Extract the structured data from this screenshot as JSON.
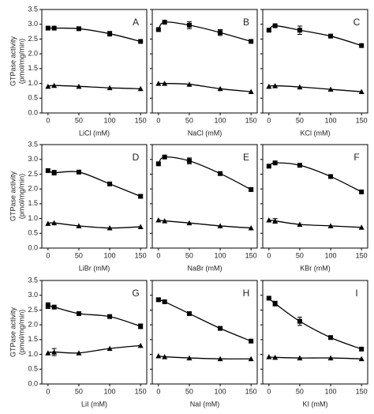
{
  "chart_data": [
    {
      "type": "scatter",
      "label": "A",
      "xlabel": "LiCl (mM)",
      "ylabel": [
        "GTPase activity",
        "(pmol/mg/min)"
      ],
      "x": [
        0,
        10,
        50,
        100,
        150
      ],
      "series": [
        {
          "marker": "square",
          "color": "#000000",
          "values": [
            2.87,
            2.87,
            2.85,
            2.68,
            2.42
          ],
          "errors": [
            null,
            null,
            null,
            0.08,
            null
          ]
        },
        {
          "marker": "triangle",
          "color": "#000000",
          "values": [
            0.9,
            0.93,
            0.9,
            0.85,
            0.82
          ],
          "errors": [
            null,
            null,
            null,
            null,
            null
          ]
        }
      ],
      "xlim": [
        -10,
        160
      ],
      "ylim": [
        0,
        3.5
      ],
      "xticks": [
        0,
        50,
        100,
        150
      ],
      "yticks": [
        {
          "value": 0,
          "label": "0.0"
        },
        {
          "value": 0.5,
          "label": "0.5"
        },
        {
          "value": 1,
          "label": "1.0"
        },
        {
          "value": 1.5,
          "label": "1.5"
        },
        {
          "value": 2,
          "label": "2.0"
        },
        {
          "value": 2.5,
          "label": "2.5"
        },
        {
          "value": 3,
          "label": "3.0"
        },
        {
          "value": 3.5,
          "label": "3.5"
        }
      ]
    },
    {
      "type": "scatter",
      "label": "B",
      "xlabel": "NaCl (mM)",
      "x": [
        0,
        10,
        50,
        100,
        150
      ],
      "series": [
        {
          "marker": "square",
          "color": "#000000",
          "values": [
            2.82,
            3.07,
            2.97,
            2.72,
            2.42
          ],
          "errors": [
            null,
            null,
            0.12,
            0.1,
            null
          ]
        },
        {
          "marker": "triangle",
          "color": "#000000",
          "values": [
            1.0,
            1.0,
            0.97,
            0.82,
            0.72
          ],
          "errors": [
            null,
            null,
            null,
            null,
            null
          ]
        }
      ],
      "xlim": [
        -10,
        160
      ],
      "ylim": [
        0,
        3.5
      ],
      "xticks": [
        0,
        50,
        100,
        150
      ],
      "yticks": [
        0,
        0.5,
        1,
        1.5,
        2,
        2.5,
        3,
        3.5
      ]
    },
    {
      "type": "scatter",
      "label": "C",
      "xlabel": "KCl (mM)",
      "x": [
        0,
        10,
        50,
        100,
        150
      ],
      "series": [
        {
          "marker": "square",
          "color": "#000000",
          "values": [
            2.8,
            2.95,
            2.8,
            2.6,
            2.28
          ],
          "errors": [
            null,
            null,
            0.14,
            null,
            null
          ]
        },
        {
          "marker": "triangle",
          "color": "#000000",
          "values": [
            0.9,
            0.92,
            0.88,
            0.8,
            0.72
          ],
          "errors": [
            null,
            null,
            null,
            null,
            null
          ]
        }
      ],
      "xlim": [
        -10,
        160
      ],
      "ylim": [
        0,
        3.5
      ],
      "xticks": [
        0,
        50,
        100,
        150
      ],
      "yticks": [
        0,
        0.5,
        1,
        1.5,
        2,
        2.5,
        3,
        3.5
      ]
    },
    {
      "type": "scatter",
      "label": "D",
      "xlabel": "LiBr (mM)",
      "ylabel": [
        "GTPase activity",
        "(pmol/mg/min)"
      ],
      "x": [
        0,
        10,
        50,
        100,
        150
      ],
      "series": [
        {
          "marker": "square",
          "color": "#000000",
          "values": [
            2.62,
            2.55,
            2.57,
            2.17,
            1.75
          ],
          "errors": [
            null,
            0.08,
            null,
            null,
            0.06
          ]
        },
        {
          "marker": "triangle",
          "color": "#000000",
          "values": [
            0.83,
            0.85,
            0.75,
            0.68,
            0.72
          ],
          "errors": [
            null,
            null,
            null,
            null,
            null
          ]
        }
      ],
      "xlim": [
        -10,
        160
      ],
      "ylim": [
        0,
        3.5
      ],
      "xticks": [
        0,
        50,
        100,
        150
      ],
      "yticks": [
        {
          "value": 0,
          "label": "0.0"
        },
        {
          "value": 0.5,
          "label": "0.5"
        },
        {
          "value": 1,
          "label": "1.0"
        },
        {
          "value": 1.5,
          "label": "1.5"
        },
        {
          "value": 2,
          "label": "2.0"
        },
        {
          "value": 2.5,
          "label": "2.5"
        },
        {
          "value": 3,
          "label": "3.0"
        },
        {
          "value": 3.5,
          "label": "3.5"
        }
      ]
    },
    {
      "type": "scatter",
      "label": "E",
      "xlabel": "NaBr (mM)",
      "x": [
        0,
        10,
        50,
        100,
        150
      ],
      "series": [
        {
          "marker": "square",
          "color": "#000000",
          "values": [
            2.85,
            3.08,
            2.95,
            2.52,
            1.98
          ],
          "errors": [
            null,
            null,
            0.1,
            null,
            0.06
          ]
        },
        {
          "marker": "triangle",
          "color": "#000000",
          "values": [
            0.95,
            0.92,
            0.85,
            0.75,
            0.68
          ],
          "errors": [
            null,
            null,
            null,
            null,
            null
          ]
        }
      ],
      "xlim": [
        -10,
        160
      ],
      "ylim": [
        0,
        3.5
      ],
      "xticks": [
        0,
        50,
        100,
        150
      ],
      "yticks": [
        0,
        0.5,
        1,
        1.5,
        2,
        2.5,
        3,
        3.5
      ]
    },
    {
      "type": "scatter",
      "label": "F",
      "xlabel": "KBr (mM)",
      "x": [
        0,
        10,
        50,
        100,
        150
      ],
      "series": [
        {
          "marker": "square",
          "color": "#000000",
          "values": [
            2.77,
            2.88,
            2.8,
            2.42,
            1.9
          ],
          "errors": [
            null,
            null,
            null,
            null,
            null
          ]
        },
        {
          "marker": "triangle",
          "color": "#000000",
          "values": [
            0.95,
            0.92,
            0.8,
            0.75,
            0.7
          ],
          "errors": [
            null,
            0.08,
            null,
            null,
            null
          ]
        }
      ],
      "xlim": [
        -10,
        160
      ],
      "ylim": [
        0,
        3.5
      ],
      "xticks": [
        0,
        50,
        100,
        150
      ],
      "yticks": [
        0,
        0.5,
        1,
        1.5,
        2,
        2.5,
        3,
        3.5
      ]
    },
    {
      "type": "scatter",
      "label": "G",
      "xlabel": "LiI (mM)",
      "ylabel": [
        "GTPase activity",
        "(pmol/mg/min)"
      ],
      "x": [
        0,
        10,
        50,
        100,
        150
      ],
      "series": [
        {
          "marker": "square",
          "color": "#000000",
          "values": [
            2.65,
            2.6,
            2.38,
            2.28,
            1.95
          ],
          "errors": [
            0.1,
            null,
            null,
            null,
            0.08
          ]
        },
        {
          "marker": "triangle",
          "color": "#000000",
          "values": [
            1.05,
            1.08,
            1.05,
            1.2,
            1.3
          ],
          "errors": [
            null,
            0.12,
            null,
            null,
            null
          ]
        }
      ],
      "xlim": [
        -10,
        160
      ],
      "ylim": [
        0,
        3.5
      ],
      "xticks": [
        0,
        50,
        100,
        150
      ],
      "yticks": [
        {
          "value": 0,
          "label": "0.0"
        },
        {
          "value": 0.5,
          "label": "0.5"
        },
        {
          "value": 1,
          "label": "1.0"
        },
        {
          "value": 1.5,
          "label": "1.5"
        },
        {
          "value": 2,
          "label": "2.0"
        },
        {
          "value": 2.5,
          "label": "2.5"
        },
        {
          "value": 3,
          "label": "3.0"
        },
        {
          "value": 3.5,
          "label": "3.5"
        }
      ]
    },
    {
      "type": "scatter",
      "label": "H",
      "xlabel": "NaI (mM)",
      "x": [
        0,
        10,
        50,
        100,
        150
      ],
      "series": [
        {
          "marker": "square",
          "color": "#000000",
          "values": [
            2.85,
            2.78,
            2.38,
            1.88,
            1.45
          ],
          "errors": [
            0.06,
            null,
            null,
            null,
            null
          ]
        },
        {
          "marker": "triangle",
          "color": "#000000",
          "values": [
            0.95,
            0.92,
            0.88,
            0.85,
            0.85
          ],
          "errors": [
            null,
            null,
            null,
            null,
            null
          ]
        }
      ],
      "xlim": [
        -10,
        160
      ],
      "ylim": [
        0,
        3.5
      ],
      "xticks": [
        0,
        50,
        100,
        150
      ],
      "yticks": [
        0,
        0.5,
        1,
        1.5,
        2,
        2.5,
        3,
        3.5
      ]
    },
    {
      "type": "scatter",
      "label": "I",
      "xlabel": "KI (mM)",
      "x": [
        0,
        10,
        50,
        100,
        150
      ],
      "series": [
        {
          "marker": "square",
          "color": "#000000",
          "values": [
            2.9,
            2.72,
            2.12,
            1.57,
            1.18
          ],
          "errors": [
            null,
            0.08,
            0.14,
            null,
            null
          ]
        },
        {
          "marker": "triangle",
          "color": "#000000",
          "values": [
            0.92,
            0.9,
            0.88,
            0.88,
            0.85
          ],
          "errors": [
            null,
            null,
            null,
            null,
            null
          ]
        }
      ],
      "xlim": [
        -10,
        160
      ],
      "ylim": [
        0,
        3.5
      ],
      "xticks": [
        0,
        50,
        100,
        150
      ],
      "yticks": [
        0,
        0.5,
        1,
        1.5,
        2,
        2.5,
        3,
        3.5
      ]
    }
  ]
}
